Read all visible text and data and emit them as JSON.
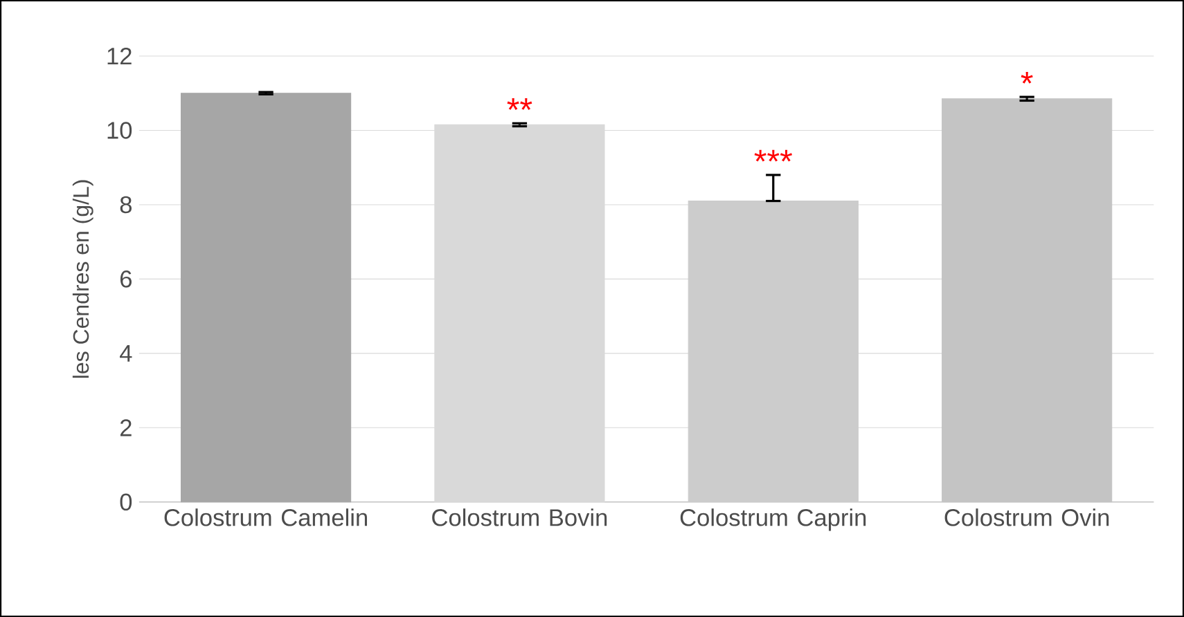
{
  "chart_data": {
    "type": "bar",
    "ylabel": "les Cendres en (g/L)",
    "categories": [
      "Colostrum Camelin",
      "Colostrum Bovin",
      "Colostrum Caprin",
      "Colostrum Ovin"
    ],
    "values": [
      11.0,
      10.15,
      8.1,
      10.85
    ],
    "errors": [
      0.03,
      0.04,
      [
        8.1,
        8.8
      ],
      0.05
    ],
    "colors": [
      "#a6a6a6",
      "#d9d9d9",
      "#cccccc",
      "#c4c4c4"
    ],
    "ylim": [
      0,
      12
    ],
    "yticks": [
      0,
      2,
      4,
      6,
      8,
      10,
      12
    ],
    "grid": "y",
    "annotations": [
      "**",
      "***",
      "*"
    ]
  }
}
